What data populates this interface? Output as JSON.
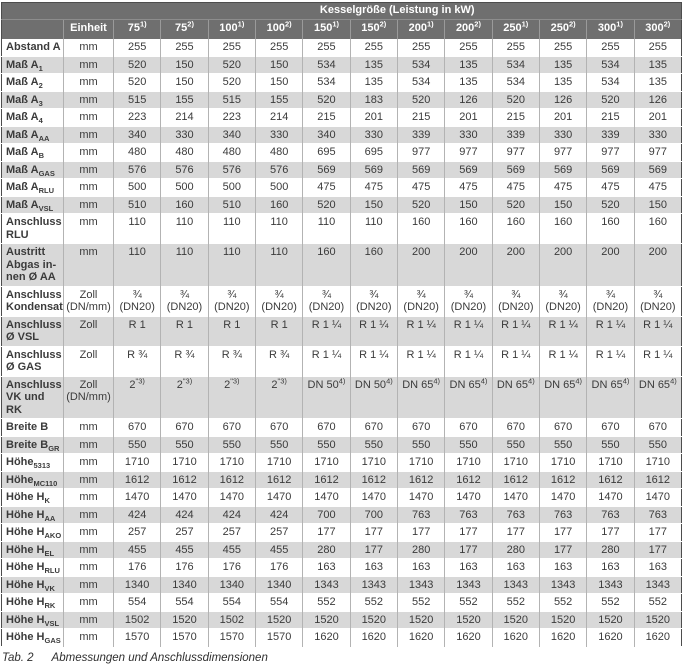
{
  "colors": {
    "header_bg": "#6f6f6f",
    "stripe": "#d8d8d8",
    "body_text": "#3b3b3b"
  },
  "table": {
    "title": "Kesselgröße (Leistung in kW)",
    "unit_header": "Einheit",
    "size_columns": [
      "75^{1)}",
      "75^{2)}",
      "100^{1)}",
      "100^{2)}",
      "150^{1)}",
      "150^{2)}",
      "200^{1)}",
      "200^{2)}",
      "250^{1)}",
      "250^{2)}",
      "300^{1)}",
      "300^{2)}"
    ],
    "rows": [
      {
        "label": "Abstand A",
        "unit": "mm",
        "values": [
          "255",
          "255",
          "255",
          "255",
          "255",
          "255",
          "255",
          "255",
          "255",
          "255",
          "255",
          "255"
        ]
      },
      {
        "label": "Maß A_{1}",
        "unit": "mm",
        "values": [
          "520",
          "150",
          "520",
          "150",
          "534",
          "135",
          "534",
          "135",
          "534",
          "135",
          "534",
          "135"
        ]
      },
      {
        "label": "Maß A_{2}",
        "unit": "mm",
        "values": [
          "520",
          "150",
          "520",
          "150",
          "534",
          "135",
          "534",
          "135",
          "534",
          "135",
          "534",
          "135"
        ]
      },
      {
        "label": "Maß A_{3}",
        "unit": "mm",
        "values": [
          "515",
          "155",
          "515",
          "155",
          "520",
          "183",
          "520",
          "126",
          "520",
          "126",
          "520",
          "126"
        ]
      },
      {
        "label": "Maß A_{4}",
        "unit": "mm",
        "values": [
          "223",
          "214",
          "223",
          "214",
          "215",
          "201",
          "215",
          "201",
          "215",
          "201",
          "215",
          "201"
        ]
      },
      {
        "label": "Maß A_{AA}",
        "unit": "mm",
        "values": [
          "340",
          "330",
          "340",
          "330",
          "340",
          "330",
          "339",
          "330",
          "339",
          "330",
          "339",
          "330"
        ]
      },
      {
        "label": "Maß A_{B}",
        "unit": "mm",
        "values": [
          "480",
          "480",
          "480",
          "480",
          "695",
          "695",
          "977",
          "977",
          "977",
          "977",
          "977",
          "977"
        ]
      },
      {
        "label": "Maß A_{GAS}",
        "unit": "mm",
        "values": [
          "576",
          "576",
          "576",
          "576",
          "569",
          "569",
          "569",
          "569",
          "569",
          "569",
          "569",
          "569"
        ]
      },
      {
        "label": "Maß A_{RLU}",
        "unit": "mm",
        "values": [
          "500",
          "500",
          "500",
          "500",
          "475",
          "475",
          "475",
          "475",
          "475",
          "475",
          "475",
          "475"
        ]
      },
      {
        "label": "Maß A_{VSL}",
        "unit": "mm",
        "values": [
          "510",
          "160",
          "510",
          "160",
          "520",
          "150",
          "520",
          "150",
          "520",
          "150",
          "520",
          "150"
        ]
      },
      {
        "label": "Anschluss|RLU",
        "unit": "mm",
        "values": [
          "110",
          "110",
          "110",
          "110",
          "110",
          "110",
          "160",
          "160",
          "160",
          "160",
          "160",
          "160"
        ]
      },
      {
        "label": "Austritt|Abgas in-|nen Ø AA",
        "unit": "mm",
        "values": [
          "110",
          "110",
          "110",
          "110",
          "160",
          "160",
          "200",
          "200",
          "200",
          "200",
          "200",
          "200"
        ]
      },
      {
        "label": "Anschluss|Kondensat",
        "unit": "Zoll|(DN/mm)",
        "values": [
          "¾|(DN20)",
          "¾|(DN20)",
          "¾|(DN20)",
          "¾|(DN20)",
          "¾|(DN20)",
          "¾|(DN20)",
          "¾|(DN20)",
          "¾|(DN20)",
          "¾|(DN20)",
          "¾|(DN20)",
          "¾|(DN20)",
          "¾|(DN20)"
        ]
      },
      {
        "label": "Anschluss|Ø  VSL",
        "unit": "Zoll",
        "values": [
          "R 1",
          "R 1",
          "R 1",
          "R 1",
          "R 1 ¼",
          "R 1 ¼",
          "R 1 ¼",
          "R 1 ¼",
          "R 1 ¼",
          "R 1 ¼",
          "R 1 ¼",
          "R 1 ¼"
        ]
      },
      {
        "label": "Anschluss|Ø GAS",
        "unit": "Zoll",
        "values": [
          "R ¾",
          "R ¾",
          "R ¾",
          "R ¾",
          "R 1 ¼",
          "R 1 ¼",
          "R 1 ¼",
          "R 1 ¼",
          "R 1 ¼",
          "R 1 ¼",
          "R 1 ¼",
          "R 1 ¼"
        ]
      },
      {
        "label": "Anschluss|VK und RK",
        "unit": "Zoll|(DN/mm)",
        "values": [
          "2^{\"3)}",
          "2^{\"3)}",
          "2^{\"3)}",
          "2^{\"3)}",
          "DN 50^{4)}",
          "DN 50^{4)}",
          "DN 65^{4)}",
          "DN 65^{4)}",
          "DN 65^{4)}",
          "DN 65^{4)}",
          "DN 65^{4)}",
          "DN 65^{4)}"
        ]
      },
      {
        "label": "Breite B",
        "unit": "mm",
        "values": [
          "670",
          "670",
          "670",
          "670",
          "670",
          "670",
          "670",
          "670",
          "670",
          "670",
          "670",
          "670"
        ]
      },
      {
        "label": "Breite B_{GR}",
        "unit": "mm",
        "values": [
          "550",
          "550",
          "550",
          "550",
          "550",
          "550",
          "550",
          "550",
          "550",
          "550",
          "550",
          "550"
        ]
      },
      {
        "label": "Höhe_{5313}",
        "unit": "mm",
        "values": [
          "1710",
          "1710",
          "1710",
          "1710",
          "1710",
          "1710",
          "1710",
          "1710",
          "1710",
          "1710",
          "1710",
          "1710"
        ]
      },
      {
        "label": "Höhe_{MC110}",
        "unit": "mm",
        "values": [
          "1612",
          "1612",
          "1612",
          "1612",
          "1612",
          "1612",
          "1612",
          "1612",
          "1612",
          "1612",
          "1612",
          "1612"
        ]
      },
      {
        "label": "Höhe H_{K}",
        "unit": "mm",
        "values": [
          "1470",
          "1470",
          "1470",
          "1470",
          "1470",
          "1470",
          "1470",
          "1470",
          "1470",
          "1470",
          "1470",
          "1470"
        ]
      },
      {
        "label": "Höhe H_{AA}",
        "unit": "mm",
        "values": [
          "424",
          "424",
          "424",
          "424",
          "700",
          "700",
          "763",
          "763",
          "763",
          "763",
          "763",
          "763"
        ]
      },
      {
        "label": "Höhe H_{AKO}",
        "unit": "mm",
        "values": [
          "257",
          "257",
          "257",
          "257",
          "177",
          "177",
          "177",
          "177",
          "177",
          "177",
          "177",
          "177"
        ]
      },
      {
        "label": "Höhe H_{EL}",
        "unit": "mm",
        "values": [
          "455",
          "455",
          "455",
          "455",
          "280",
          "177",
          "280",
          "177",
          "280",
          "177",
          "280",
          "177"
        ]
      },
      {
        "label": "Höhe H_{RLU}",
        "unit": "mm",
        "values": [
          "176",
          "176",
          "176",
          "176",
          "163",
          "163",
          "163",
          "163",
          "163",
          "163",
          "163",
          "163"
        ]
      },
      {
        "label": "Höhe H_{VK}",
        "unit": "mm",
        "values": [
          "1340",
          "1340",
          "1340",
          "1340",
          "1343",
          "1343",
          "1343",
          "1343",
          "1343",
          "1343",
          "1343",
          "1343"
        ]
      },
      {
        "label": "Höhe H_{RK}",
        "unit": "mm",
        "values": [
          "554",
          "554",
          "554",
          "554",
          "552",
          "552",
          "552",
          "552",
          "552",
          "552",
          "552",
          "552"
        ]
      },
      {
        "label": "Höhe H_{VSL}",
        "unit": "mm",
        "values": [
          "1502",
          "1520",
          "1502",
          "1520",
          "1520",
          "1520",
          "1520",
          "1520",
          "1520",
          "1520",
          "1520",
          "1520"
        ]
      },
      {
        "label": "Höhe H_{GAS}",
        "unit": "mm",
        "values": [
          "1570",
          "1570",
          "1570",
          "1570",
          "1620",
          "1620",
          "1620",
          "1620",
          "1620",
          "1620",
          "1620",
          "1620"
        ]
      }
    ]
  },
  "caption": {
    "tab_label": "Tab. 2",
    "text": "Abmessungen und Anschlussdimensionen"
  }
}
